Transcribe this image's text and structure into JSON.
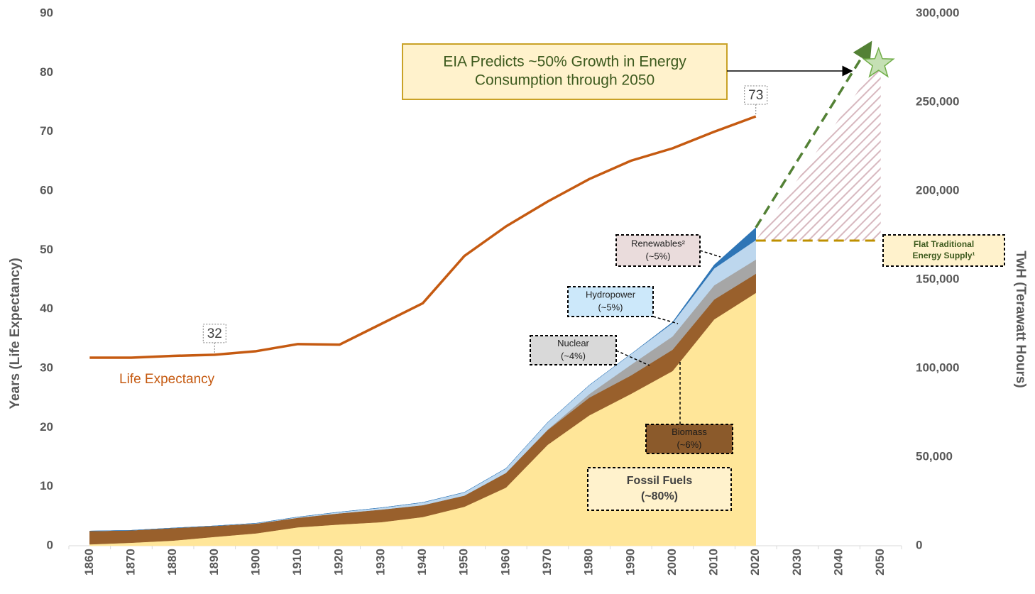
{
  "chart_data": {
    "type": "area",
    "categories": [
      "1860",
      "1870",
      "1880",
      "1890",
      "1900",
      "1910",
      "1920",
      "1930",
      "1940",
      "1950",
      "1960",
      "1970",
      "1980",
      "1990",
      "2000",
      "2010",
      "2020",
      "2030",
      "2040",
      "2050"
    ],
    "y_axis_label": "Years (Life Expectancy)",
    "y2_axis_label": "TwH (Terawatt Hours)",
    "ylim": [
      0,
      90
    ],
    "yticks": [
      0,
      10,
      20,
      30,
      40,
      50,
      60,
      70,
      80,
      90
    ],
    "y2lim": [
      0,
      300000
    ],
    "y2ticks": [
      0,
      {
        "value": 50000,
        "label": "50,000"
      },
      {
        "value": 100000,
        "label": "100,000"
      },
      {
        "value": 150000,
        "label": "150,000"
      },
      {
        "value": 200000,
        "label": "200,000"
      },
      {
        "value": 250000,
        "label": "250,000"
      },
      {
        "value": 300000,
        "label": "300,000"
      }
    ],
    "line_series": {
      "name": "Life Expectancy",
      "color": "#c55a11",
      "values": [
        31.8,
        31.8,
        32.1,
        32.3,
        32.9,
        34.1,
        34.0,
        37.5,
        41.0,
        49.0,
        54.0,
        58.2,
        62.0,
        65.1,
        67.2,
        70.0,
        72.6,
        null,
        null,
        null
      ],
      "point_labels": [
        {
          "index": 3,
          "label": "32"
        },
        {
          "index": 16,
          "label": "73"
        }
      ]
    },
    "series": [
      {
        "name": "Fossil Fuels",
        "color": "#ffe699",
        "axis": "y2",
        "values": [
          800,
          1700,
          2900,
          5000,
          7000,
          10400,
          12000,
          13300,
          16200,
          22000,
          32800,
          56900,
          73500,
          85600,
          98500,
          127600,
          142500,
          null,
          null,
          null
        ]
      },
      {
        "name": "Biomass",
        "color": "#99602c",
        "axis": "y2",
        "values": [
          7500,
          7000,
          7100,
          6200,
          5500,
          5400,
          6300,
          7100,
          6700,
          6300,
          8300,
          8300,
          10000,
          10400,
          12000,
          11200,
          10800,
          null,
          null,
          null
        ]
      },
      {
        "name": "Nuclear",
        "color": "#a6a6a6",
        "axis": "y2",
        "values": [
          0,
          0,
          0,
          0,
          0,
          0,
          0,
          0,
          0,
          0,
          0,
          300,
          2000,
          6000,
          7500,
          8000,
          8000,
          null,
          null,
          null
        ]
      },
      {
        "name": "Hydropower",
        "color": "#bdd7ee",
        "axis": "y2",
        "values": [
          0,
          0,
          0,
          0,
          200,
          400,
          700,
          1000,
          1500,
          1800,
          2500,
          4000,
          5000,
          6000,
          7500,
          9500,
          11000,
          null,
          null,
          null
        ]
      },
      {
        "name": "Renewables",
        "color": "#2e75b6",
        "axis": "y2",
        "values": [
          0,
          0,
          0,
          0,
          0,
          0,
          0,
          0,
          0,
          0,
          0,
          0,
          0,
          0,
          500,
          2000,
          7000,
          null,
          null,
          null
        ]
      }
    ],
    "flat_supply": {
      "x": [
        "2020",
        "2050"
      ],
      "value": 172000
    },
    "projection": {
      "x": [
        "2020",
        "2050"
      ],
      "values": [
        179300,
        275000
      ]
    },
    "annotations": [
      {
        "lines": [
          "EIA Predicts ~50% Growth in Energy",
          "Consumption through 2050"
        ]
      },
      {
        "lines": [
          "Renewables²",
          "(~5%)"
        ]
      },
      {
        "lines": [
          "Hydropower",
          "(~5%)"
        ]
      },
      {
        "lines": [
          "Nuclear",
          "(~4%)"
        ]
      },
      {
        "lines": [
          "Biomass",
          "(~6%)"
        ]
      },
      {
        "lines": [
          "Fossil Fuels",
          "(~80%)"
        ]
      },
      {
        "lines": [
          "Flat Traditional",
          "Energy Supply¹"
        ]
      }
    ]
  }
}
